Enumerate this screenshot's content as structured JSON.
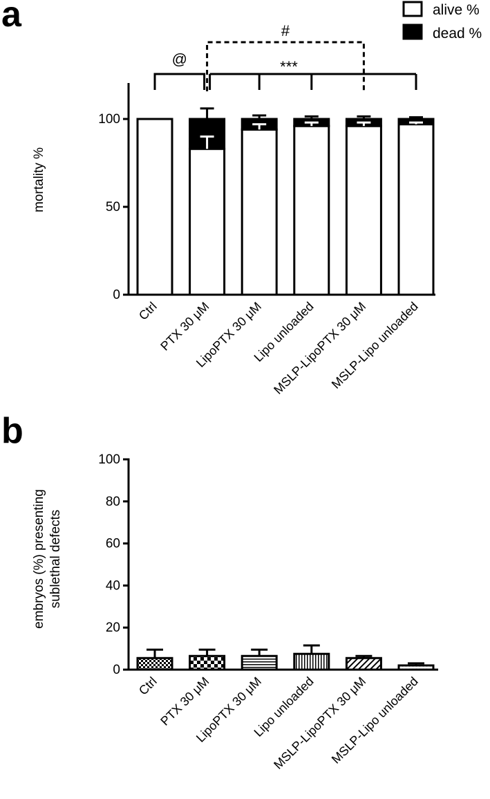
{
  "chart_data": [
    {
      "panel": "a",
      "type": "bar",
      "stacked": true,
      "ylabel": "mortality %",
      "ylim": [
        0,
        120
      ],
      "yticks": [
        0,
        50,
        100
      ],
      "categories": [
        "Ctrl",
        "PTX 30 μM",
        "LipoPTX 30 μM",
        "Lipo unloaded",
        "MSLP-LipoPTX 30 μM",
        "MSLP-Lipo unloaded"
      ],
      "series": [
        {
          "name": "alive %",
          "color": "#ffffff",
          "values": [
            100,
            83,
            94,
            96,
            96,
            97
          ],
          "err": [
            0,
            7,
            3,
            2,
            2,
            1
          ]
        },
        {
          "name": "dead %",
          "color": "#000000",
          "values": [
            0,
            17,
            6,
            4,
            4,
            3
          ],
          "err": [
            0,
            6,
            2,
            1.5,
            1.5,
            1
          ]
        }
      ],
      "legend": {
        "position": "top-right",
        "entries": [
          "alive %",
          "dead %"
        ]
      },
      "annotations": {
        "at": "@",
        "hash": "#",
        "stars": "***"
      }
    },
    {
      "panel": "b",
      "type": "bar",
      "ylabel_lines": [
        "embryos (%) presenting",
        "sublethal defects"
      ],
      "ylim": [
        0,
        100
      ],
      "yticks": [
        0,
        20,
        40,
        60,
        80,
        100
      ],
      "categories": [
        "Ctrl",
        "PTX 30 μM",
        "LipoPTX 30 μM",
        "Lipo unloaded",
        "MSLP-LipoPTX 30 μM",
        "MSLP-Lipo unloaded"
      ],
      "values": [
        5.5,
        6.5,
        6.5,
        7.5,
        5.5,
        2.0
      ],
      "err": [
        4.0,
        3.0,
        3.0,
        4.0,
        1.0,
        1.0
      ],
      "patterns": [
        "checker",
        "checker-large",
        "horizontal",
        "vertical",
        "diagonal",
        "dots"
      ]
    }
  ],
  "labels": {
    "panel_a": "a",
    "panel_b": "b"
  }
}
